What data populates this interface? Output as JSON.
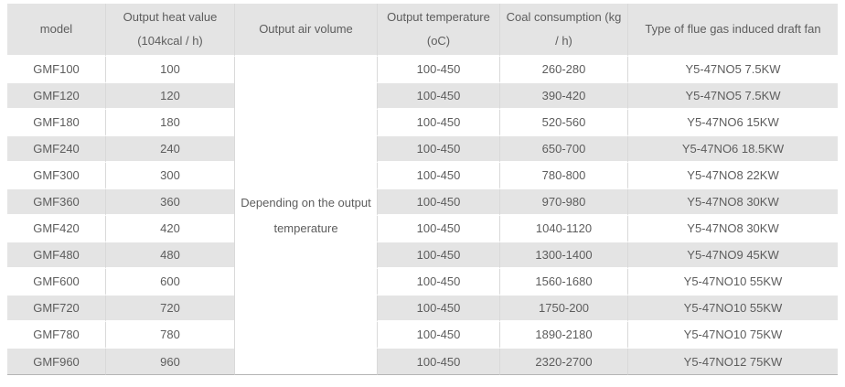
{
  "colors": {
    "header_bg": "#e4e4e4",
    "row_bg": "#ffffff",
    "row_alt_bg": "#e4e4e4",
    "grid_line": "#d9d9d9",
    "row_separator": "#ffffff",
    "table_bottom_border": "#b5b5b5",
    "text": "#5d5d5d"
  },
  "chart_data": {
    "type": "table",
    "columns": [
      {
        "lines": [
          "model"
        ]
      },
      {
        "lines": [
          "Output heat value",
          "(104kcal / h)"
        ]
      },
      {
        "lines": [
          "Output air volume"
        ]
      },
      {
        "lines": [
          "Output temperature",
          "(oC)"
        ]
      },
      {
        "lines": [
          "Coal consumption (kg",
          "/ h)"
        ]
      },
      {
        "lines": [
          "Type of flue gas induced draft fan"
        ]
      }
    ],
    "air_volume_note_lines": [
      "Depending on the output",
      "temperature"
    ],
    "rows": [
      [
        "GMF100",
        "100",
        "100-450",
        "260-280",
        "Y5-47NO5 7.5KW"
      ],
      [
        "GMF120",
        "120",
        "100-450",
        "390-420",
        "Y5-47NO5 7.5KW"
      ],
      [
        "GMF180",
        "180",
        "100-450",
        "520-560",
        "Y5-47NO6 15KW"
      ],
      [
        "GMF240",
        "240",
        "100-450",
        "650-700",
        "Y5-47NO6 18.5KW"
      ],
      [
        "GMF300",
        "300",
        "100-450",
        "780-800",
        "Y5-47NO8 22KW"
      ],
      [
        "GMF360",
        "360",
        "100-450",
        "970-980",
        "Y5-47NO8 30KW"
      ],
      [
        "GMF420",
        "420",
        "100-450",
        "1040-1120",
        "Y5-47NO8 30KW"
      ],
      [
        "GMF480",
        "480",
        "100-450",
        "1300-1400",
        "Y5-47NO9 45KW"
      ],
      [
        "GMF600",
        "600",
        "100-450",
        "1560-1680",
        "Y5-47NO10 55KW"
      ],
      [
        "GMF720",
        "720",
        "100-450",
        "1750-200",
        "Y5-47NO10 55KW"
      ],
      [
        "GMF780",
        "780",
        "100-450",
        "1890-2180",
        "Y5-47NO10 75KW"
      ],
      [
        "GMF960",
        "960",
        "100-450",
        "2320-2700",
        "Y5-47NO12 75KW"
      ]
    ]
  }
}
